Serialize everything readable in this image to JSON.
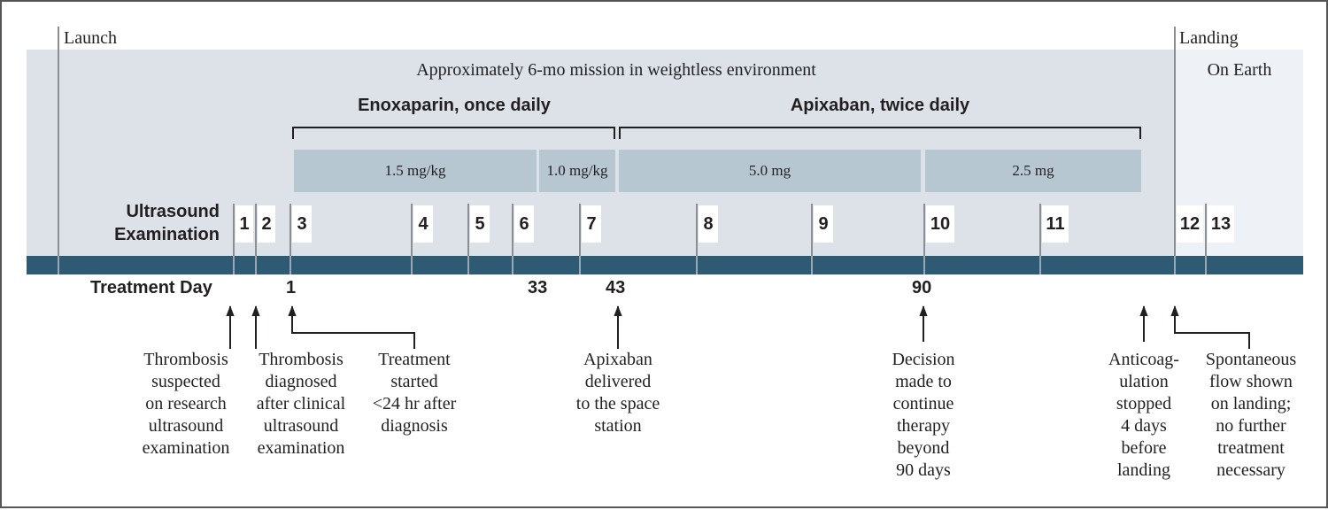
{
  "phases": {
    "launch": "Launch",
    "landing": "Landing",
    "mission": "Approximately 6-mo mission in weightless environment",
    "earth": "On Earth"
  },
  "drugs": {
    "enoxaparin": "Enoxaparin, once daily",
    "apixaban": "Apixaban, twice daily"
  },
  "doses": [
    "1.5 mg/kg",
    "1.0 mg/kg",
    "5.0 mg",
    "2.5 mg"
  ],
  "ultrasound_label": "Ultrasound\nExamination",
  "exams": [
    "1",
    "2",
    "3",
    "4",
    "5",
    "6",
    "7",
    "8",
    "9",
    "10",
    "11",
    "12",
    "13"
  ],
  "treatment_day_label": "Treatment Day",
  "treatment_days": [
    "1",
    "33",
    "43",
    "90"
  ],
  "events": [
    "Thrombosis\nsuspected\non research\nultrasound\nexamination",
    "Thrombosis\ndiagnosed\nafter clinical\nultrasound\nexamination",
    "Treatment\nstarted\n<24 hr after\ndiagnosis",
    "Apixaban\ndelivered\nto the space\nstation",
    "Decision\nmade to\ncontinue\ntherapy\nbeyond\n90 days",
    "Anticoag-\nulation\nstopped\n4 days\nbefore\nlanding",
    "Spontaneous\nflow shown\non landing;\nno further\ntreatment\nnecessary"
  ],
  "colors": {
    "space_band": "#dce2e7",
    "earth_band": "#eef2f6",
    "dose_bar": "#b7c7d2",
    "timeline_bar": "#2f5a74"
  }
}
